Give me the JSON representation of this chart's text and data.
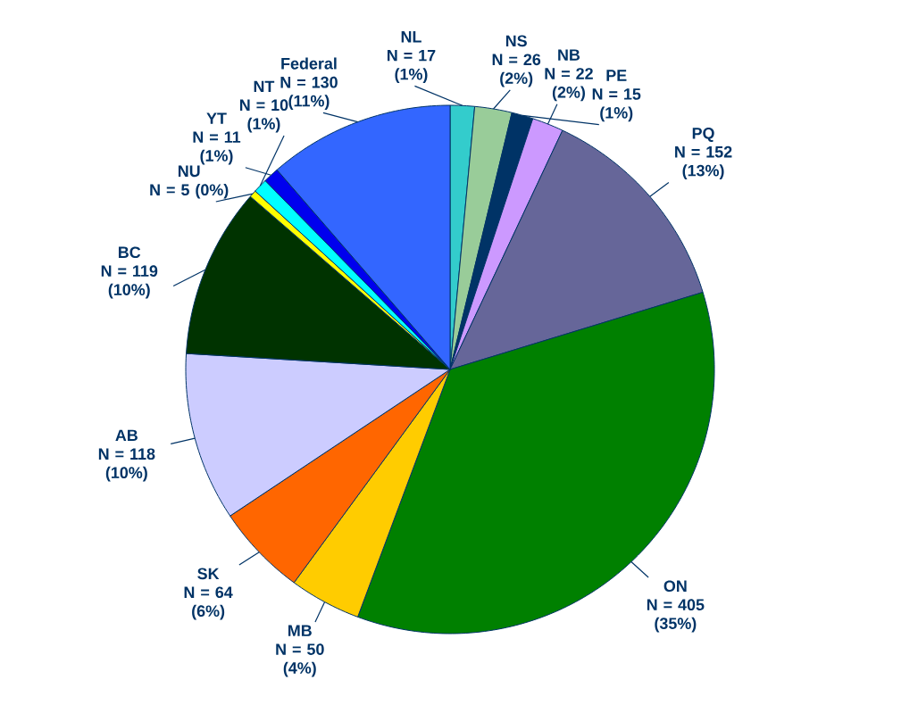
{
  "chart_data": {
    "type": "pie",
    "categories": [
      "NL",
      "NS",
      "PE",
      "NB",
      "PQ",
      "ON",
      "MB",
      "SK",
      "AB",
      "BC",
      "NU",
      "NT",
      "YT",
      "Federal"
    ],
    "values": [
      17,
      26,
      15,
      22,
      152,
      405,
      50,
      64,
      118,
      119,
      5,
      10,
      11,
      130
    ],
    "value_labels": [
      "N = 17 (1%)",
      "N = 26 (2%)",
      "N = 15 (1%)",
      "N = 22 (2%)",
      "N = 152 (13%)",
      "N = 405 (35%)",
      "N = 50 (4%)",
      "N = 64 (6%)",
      "N = 118 (10%)",
      "N = 119 (10%)",
      "N = 5 (0%)",
      "N = 10 (1%)",
      "N = 11 (1%)",
      "N = 130 (11%)"
    ],
    "colors": [
      "#33cccc",
      "#99cc99",
      "#003366",
      "#cc99ff",
      "#666699",
      "#008000",
      "#ffcc00",
      "#ff6600",
      "#ccccff",
      "#003300",
      "#ffff00",
      "#00ffff",
      "#0000ee",
      "#3366ff"
    ]
  }
}
